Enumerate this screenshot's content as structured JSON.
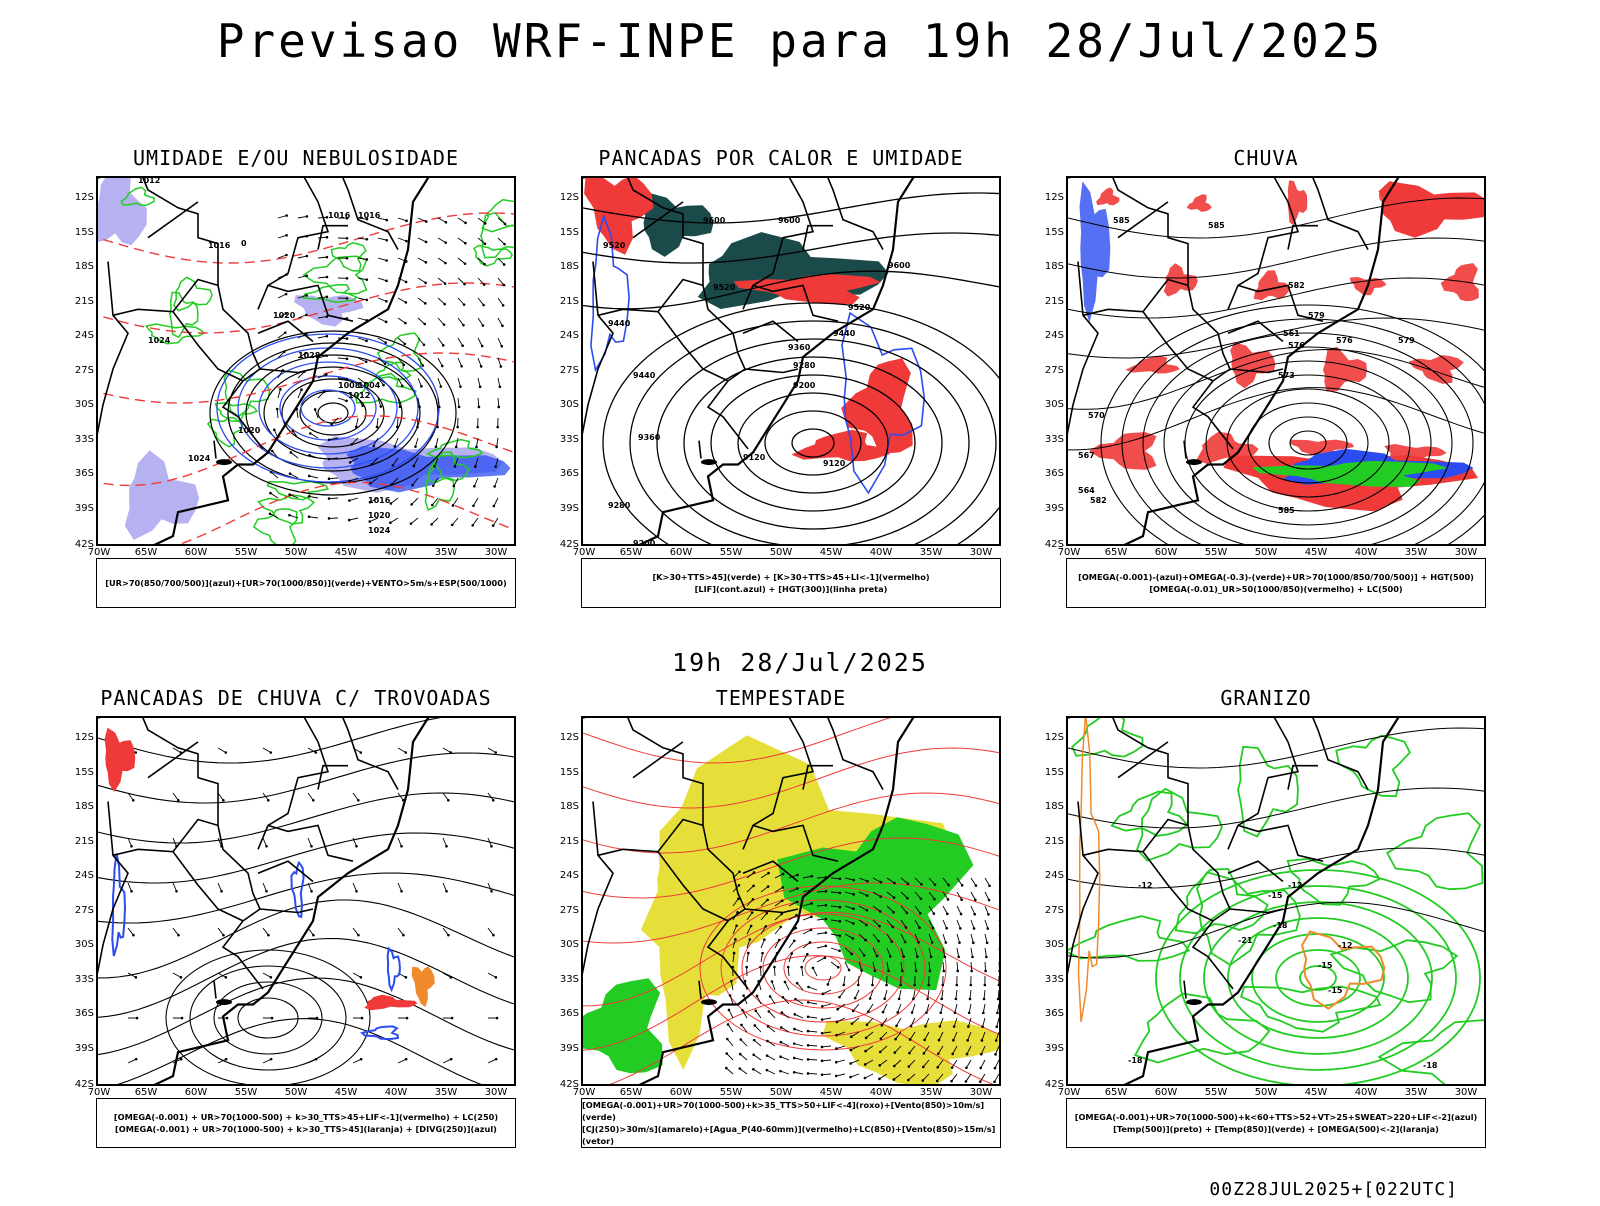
{
  "main_title": "Previsao WRF-INPE  para 19h 28/Jul/2025",
  "mid_title": "19h 28/Jul/2025",
  "footer": "00Z28JUL2025+[022UTC]",
  "lat_labels": [
    "12S",
    "15S",
    "18S",
    "21S",
    "24S",
    "27S",
    "30S",
    "33S",
    "36S",
    "39S",
    "42S"
  ],
  "lon_labels": [
    "70W",
    "65W",
    "60W",
    "55W",
    "50W",
    "45W",
    "40W",
    "35W",
    "30W"
  ],
  "colors": {
    "red": "#f03a3a",
    "green": "#22cc22",
    "blue": "#2b4cf0",
    "lavender": "#a9a4f0",
    "dark_teal": "#1b4a4a",
    "yellow": "#e6df3a",
    "orange": "#f08a2a"
  },
  "panels": [
    {
      "title": "UMIDADE E/OU NEBULOSIDADE",
      "legend": [
        "[UR>70(850/700/500)](azul)+[UR>70(1000/850)](verde)+VENTO>5m/s+ESP(500/1000)"
      ],
      "contour_labels": [
        "1012",
        "1016",
        "1016",
        "1016",
        "1020",
        "1024",
        "1020",
        "1024",
        "1028",
        "1016",
        "1020",
        "1024",
        "1008",
        "1012",
        "1004",
        "0"
      ]
    },
    {
      "title": "PANCADAS POR CALOR E UMIDADE",
      "legend": [
        "[K>30+TTS>45](verde) + [K>30+TTS>45+LI<-1](vermelho)",
        "[LIF](cont.azul) + [HGT(300)](linha preta)"
      ],
      "contour_labels": [
        "9600",
        "9600",
        "9520",
        "9520",
        "9440",
        "9440",
        "9360",
        "9280",
        "9200",
        "9120",
        "9120",
        "9360",
        "9280",
        "9200",
        "9600",
        "9520",
        "9440"
      ]
    },
    {
      "title": "CHUVA",
      "legend": [
        "[OMEGA(-0.001)-(azul)+OMEGA(-0.3)-(verde)+UR>70(1000/850/700/500)] + HGT(500)",
        "[OMEGA(-0.01)_UR>50(1000/850)(vermelho) + LC(500)"
      ],
      "contour_labels": [
        "585",
        "585",
        "582",
        "579",
        "576",
        "573",
        "570",
        "567",
        "564",
        "561",
        "576",
        "579",
        "582",
        "585"
      ]
    },
    {
      "title": "PANCADAS DE CHUVA C/ TROVOADAS",
      "legend": [
        "[OMEGA(-0.001) + UR>70(1000-500) + k>30_TTS>45+LIF<-1](vermelho) + LC(250)",
        "[OMEGA(-0.001) + UR>70(1000-500) + k>30_TTS>45](laranja) + [DIVG(250)](azul)"
      ],
      "contour_labels": []
    },
    {
      "title": "TEMPESTADE",
      "legend": [
        "[OMEGA(-0.001)+UR>70(1000-500)+k>35_TTS>50+LIF<-4](roxo)+[Vento(850)>10m/s](verde)",
        "[CJ(250)>30m/s](amarelo)+[Agua_P(40-60mm)](vermelho)+LC(850)+[Vento(850)>15m/s](vetor)"
      ],
      "contour_labels": []
    },
    {
      "title": "GRANIZO",
      "legend": [
        "[OMEGA(-0.001)+UR>70(1000-500)+k<60+TTS>52+VT>25+SWEAT>220+LIF<-2](azul)",
        "[Temp(500)](preto) + [Temp(850)](verde) + [OMEGA(500)<-2](laranja)"
      ],
      "contour_labels": [
        "-12",
        "-15",
        "-18",
        "-21",
        "-12",
        "-15",
        "-18",
        "-18",
        "-15",
        "-12"
      ]
    }
  ]
}
